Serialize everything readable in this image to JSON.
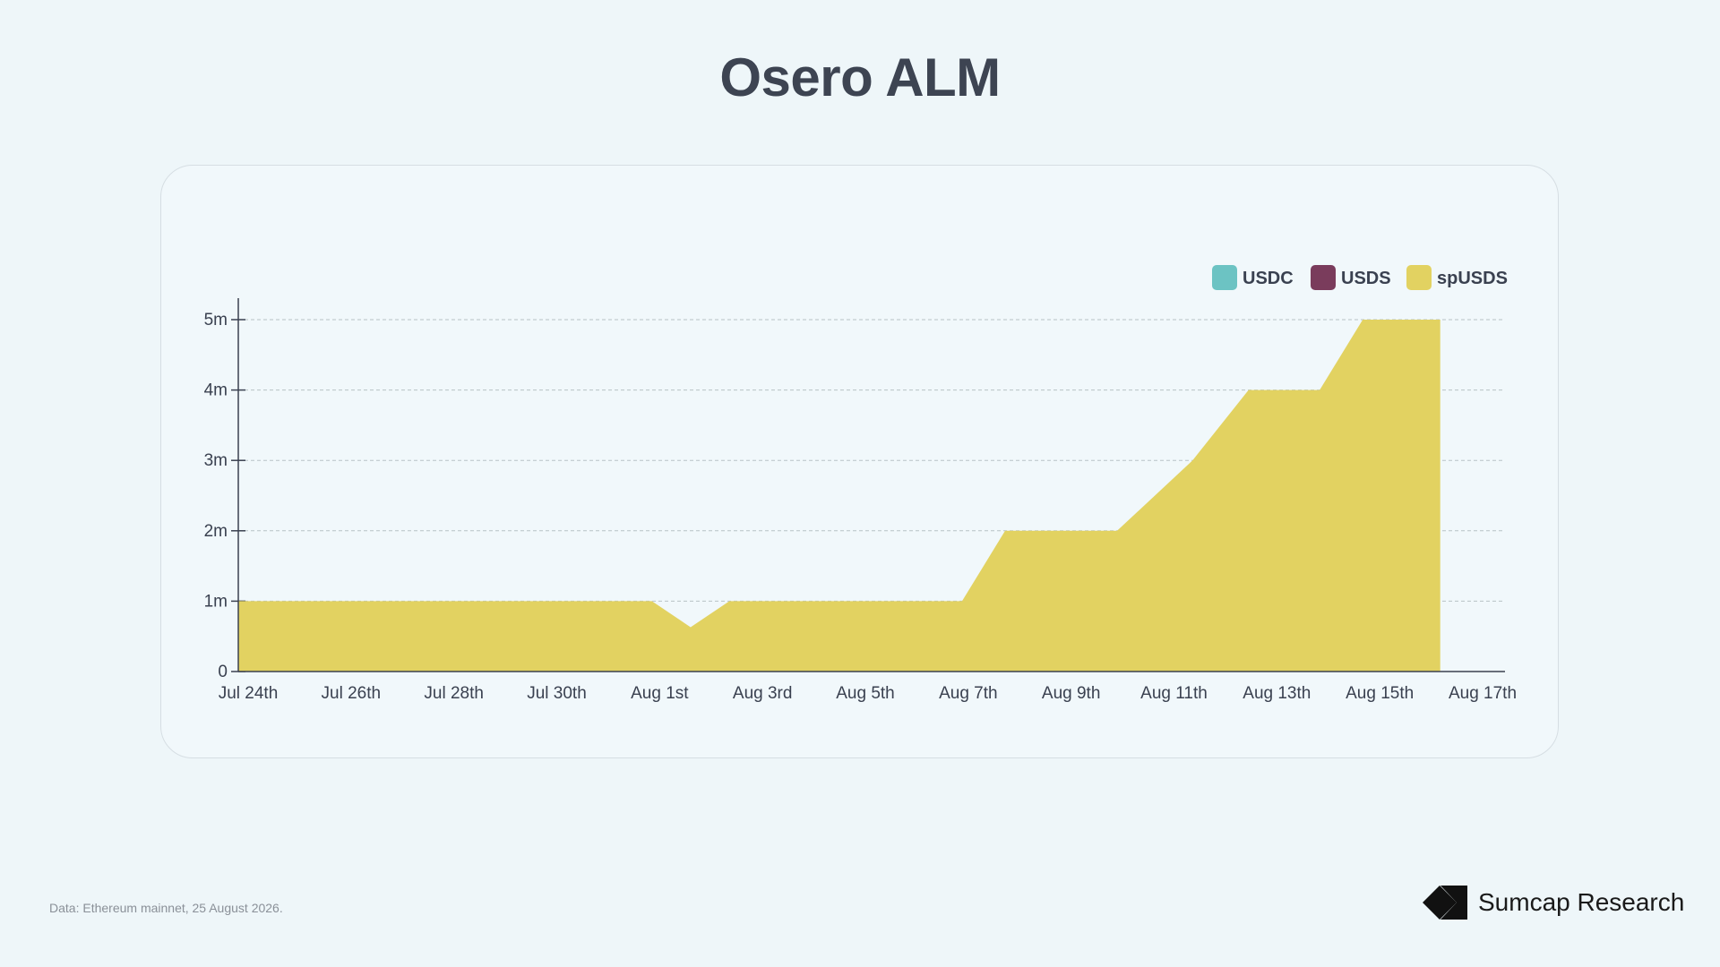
{
  "title": "Osero ALM",
  "source_note": "Data: Ethereum mainnet, 25 August 2026.",
  "brand": {
    "name": "Sumcap Research",
    "logo_icon": "sumcap-logo-icon"
  },
  "colors": {
    "USDC": "#6cc3c3",
    "USDS": "#7a3c5c",
    "spUSDS": "#e2d261",
    "axis": "#3a4150",
    "grid": "#b8c2c6"
  },
  "chart_data": {
    "type": "area",
    "stacked": true,
    "legend_position": "top-right",
    "grid": true,
    "x_ticks": [
      "Jul 24th",
      "Jul 26th",
      "Jul 28th",
      "Jul 30th",
      "Aug 1st",
      "Aug 3rd",
      "Aug 5th",
      "Aug 7th",
      "Aug 9th",
      "Aug 11th",
      "Aug 13th",
      "Aug 15th",
      "Aug 17th"
    ],
    "x_range": [
      "2026-07-24",
      "2026-08-17"
    ],
    "y_ticks": [
      "0",
      "1m",
      "2m",
      "3m",
      "4m",
      "5m"
    ],
    "ylim": [
      0,
      5000000
    ],
    "series": [
      {
        "name": "USDC",
        "points": []
      },
      {
        "name": "USDS",
        "points": []
      },
      {
        "name": "spUSDS",
        "points": [
          [
            "2026-07-24",
            1000000
          ],
          [
            "2026-08-01",
            1000000
          ],
          [
            "2026-08-01T18:00",
            630000
          ],
          [
            "2026-08-02T12:00",
            1000000
          ],
          [
            "2026-08-07",
            1000000
          ],
          [
            "2026-08-07T20:00",
            2000000
          ],
          [
            "2026-08-10",
            2000000
          ],
          [
            "2026-08-11T11:00",
            3000000
          ],
          [
            "2026-08-12T13:00",
            4000000
          ],
          [
            "2026-08-13T22:00",
            4000000
          ],
          [
            "2026-08-14T18:00",
            5000000
          ],
          [
            "2026-08-16T06:00",
            5000000
          ],
          [
            "2026-08-16T06:00",
            0
          ]
        ]
      }
    ]
  }
}
